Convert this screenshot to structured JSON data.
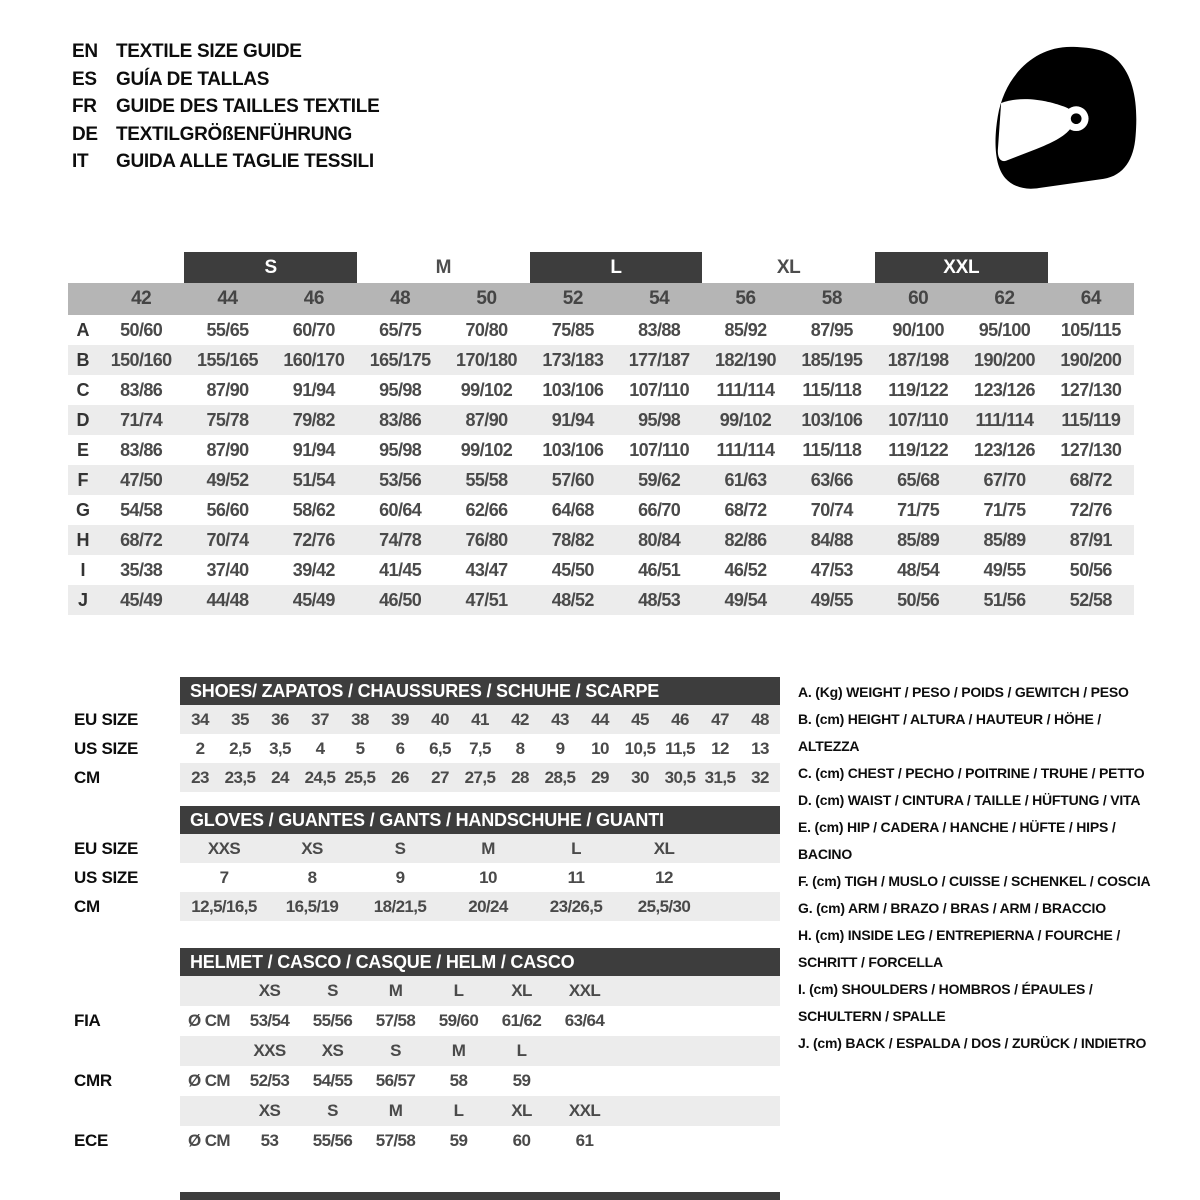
{
  "colors": {
    "bar_dark": "#3d3d3d",
    "numeric_header_gray": "#b5b5b5",
    "row_stripe": "#ececec",
    "table_text": "#4a4a4a",
    "label_text": "#0d0d0d"
  },
  "header": {
    "languages": [
      {
        "code": "EN",
        "title": "TEXTILE SIZE GUIDE"
      },
      {
        "code": "ES",
        "title": "GUÍA DE TALLAS"
      },
      {
        "code": "FR",
        "title": "GUIDE DES TAILLES TEXTILE"
      },
      {
        "code": "DE",
        "title": "TEXTILGRÖßENFÜHRUNG"
      },
      {
        "code": "IT",
        "title": "GUIDA ALLE TAGLIE TESSILI"
      }
    ]
  },
  "main_size_table": {
    "letter_header": [
      {
        "label": "S",
        "boxed": true
      },
      {
        "label": "M",
        "boxed": false
      },
      {
        "label": "L",
        "boxed": true
      },
      {
        "label": "XL",
        "boxed": false
      },
      {
        "label": "XXL",
        "boxed": true
      }
    ],
    "numeric_header": [
      "42",
      "44",
      "46",
      "48",
      "50",
      "52",
      "54",
      "56",
      "58",
      "60",
      "62",
      "64"
    ],
    "rows": [
      {
        "label": "A",
        "values": [
          "50/60",
          "55/65",
          "60/70",
          "65/75",
          "70/80",
          "75/85",
          "83/88",
          "85/92",
          "87/95",
          "90/100",
          "95/100",
          "105/115"
        ]
      },
      {
        "label": "B",
        "values": [
          "150/160",
          "155/165",
          "160/170",
          "165/175",
          "170/180",
          "173/183",
          "177/187",
          "182/190",
          "185/195",
          "187/198",
          "190/200",
          "190/200"
        ]
      },
      {
        "label": "C",
        "values": [
          "83/86",
          "87/90",
          "91/94",
          "95/98",
          "99/102",
          "103/106",
          "107/110",
          "111/114",
          "115/118",
          "119/122",
          "123/126",
          "127/130"
        ]
      },
      {
        "label": "D",
        "values": [
          "71/74",
          "75/78",
          "79/82",
          "83/86",
          "87/90",
          "91/94",
          "95/98",
          "99/102",
          "103/106",
          "107/110",
          "111/114",
          "115/119"
        ]
      },
      {
        "label": "E",
        "values": [
          "83/86",
          "87/90",
          "91/94",
          "95/98",
          "99/102",
          "103/106",
          "107/110",
          "111/114",
          "115/118",
          "119/122",
          "123/126",
          "127/130"
        ]
      },
      {
        "label": "F",
        "values": [
          "47/50",
          "49/52",
          "51/54",
          "53/56",
          "55/58",
          "57/60",
          "59/62",
          "61/63",
          "63/66",
          "65/68",
          "67/70",
          "68/72"
        ]
      },
      {
        "label": "G",
        "values": [
          "54/58",
          "56/60",
          "58/62",
          "60/64",
          "62/66",
          "64/68",
          "66/70",
          "68/72",
          "70/74",
          "71/75",
          "71/75",
          "72/76"
        ]
      },
      {
        "label": "H",
        "values": [
          "68/72",
          "70/74",
          "72/76",
          "74/78",
          "76/80",
          "78/82",
          "80/84",
          "82/86",
          "84/88",
          "85/89",
          "85/89",
          "87/91"
        ]
      },
      {
        "label": "I",
        "values": [
          "35/38",
          "37/40",
          "39/42",
          "41/45",
          "43/47",
          "45/50",
          "46/51",
          "46/52",
          "47/53",
          "48/54",
          "49/55",
          "50/56"
        ]
      },
      {
        "label": "J",
        "values": [
          "45/49",
          "44/48",
          "45/49",
          "46/50",
          "47/51",
          "48/52",
          "48/53",
          "49/54",
          "49/55",
          "50/56",
          "51/56",
          "52/58"
        ]
      }
    ]
  },
  "shoes_table": {
    "title": "SHOES/ ZAPATOS / CHAUSSURES / SCHUHE / SCARPE",
    "rows": [
      {
        "label": "EU SIZE",
        "values": [
          "34",
          "35",
          "36",
          "37",
          "38",
          "39",
          "40",
          "41",
          "42",
          "43",
          "44",
          "45",
          "46",
          "47",
          "48"
        ]
      },
      {
        "label": "US SIZE",
        "values": [
          "2",
          "2,5",
          "3,5",
          "4",
          "5",
          "6",
          "6,5",
          "7,5",
          "8",
          "9",
          "10",
          "10,5",
          "11,5",
          "12",
          "13"
        ]
      },
      {
        "label": "CM",
        "values": [
          "23",
          "23,5",
          "24",
          "24,5",
          "25,5",
          "26",
          "27",
          "27,5",
          "28",
          "28,5",
          "29",
          "30",
          "30,5",
          "31,5",
          "32"
        ]
      }
    ]
  },
  "gloves_table": {
    "title": "GLOVES / GUANTES / GANTS / HANDSCHUHE / GUANTI",
    "rows": [
      {
        "label": "EU SIZE",
        "values": [
          "XXS",
          "XS",
          "S",
          "M",
          "L",
          "XL"
        ]
      },
      {
        "label": "US SIZE",
        "values": [
          "7",
          "8",
          "9",
          "10",
          "11",
          "12"
        ]
      },
      {
        "label": "CM",
        "values": [
          "12,5/16,5",
          "16,5/19",
          "18/21,5",
          "20/24",
          "23/26,5",
          "25,5/30"
        ]
      }
    ]
  },
  "helmet_table": {
    "title": "HELMET / CASCO / CASQUE / HELM / CASCO",
    "diameter_label": "Ø CM",
    "standards": [
      {
        "name": "FIA",
        "sizes": [
          "XS",
          "S",
          "M",
          "L",
          "XL",
          "XXL"
        ],
        "values": [
          "53/54",
          "55/56",
          "57/58",
          "59/60",
          "61/62",
          "63/64"
        ]
      },
      {
        "name": "CMR",
        "sizes": [
          "XXS",
          "XS",
          "S",
          "M",
          "L",
          ""
        ],
        "values": [
          "52/53",
          "54/55",
          "56/57",
          "58",
          "59",
          ""
        ]
      },
      {
        "name": "ECE",
        "sizes": [
          "XS",
          "S",
          "M",
          "L",
          "XL",
          "XXL"
        ],
        "values": [
          "53",
          "55/56",
          "57/58",
          "59",
          "60",
          "61"
        ]
      }
    ]
  },
  "legend": {
    "items": [
      "A. (Kg) WEIGHT / PESO / POIDS / GEWITCH / PESO",
      "B. (cm) HEIGHT / ALTURA / HAUTEUR / HÖHE / ALTEZZA",
      "C. (cm) CHEST / PECHO / POITRINE / TRUHE / PETTO",
      "D. (cm) WAIST / CINTURA / TAILLE / HÜFTUNG / VITA",
      "E. (cm) HIP / CADERA / HANCHE / HÜFTE / HIPS / BACINO",
      "F. (cm) TIGH / MUSLO / CUISSE / SCHENKEL / COSCIA",
      "G. (cm) ARM / BRAZO / BRAS / ARM / BRACCIO",
      "H. (cm) INSIDE LEG / ENTREPIERNA / FOURCHE / SCHRITT / FORCELLA",
      "I. (cm) SHOULDERS / HOMBROS / ÉPAULES / SCHULTERN / SPALLE",
      "J. (cm) BACK / ESPALDA / DOS / ZURÜCK / INDIETRO"
    ]
  }
}
